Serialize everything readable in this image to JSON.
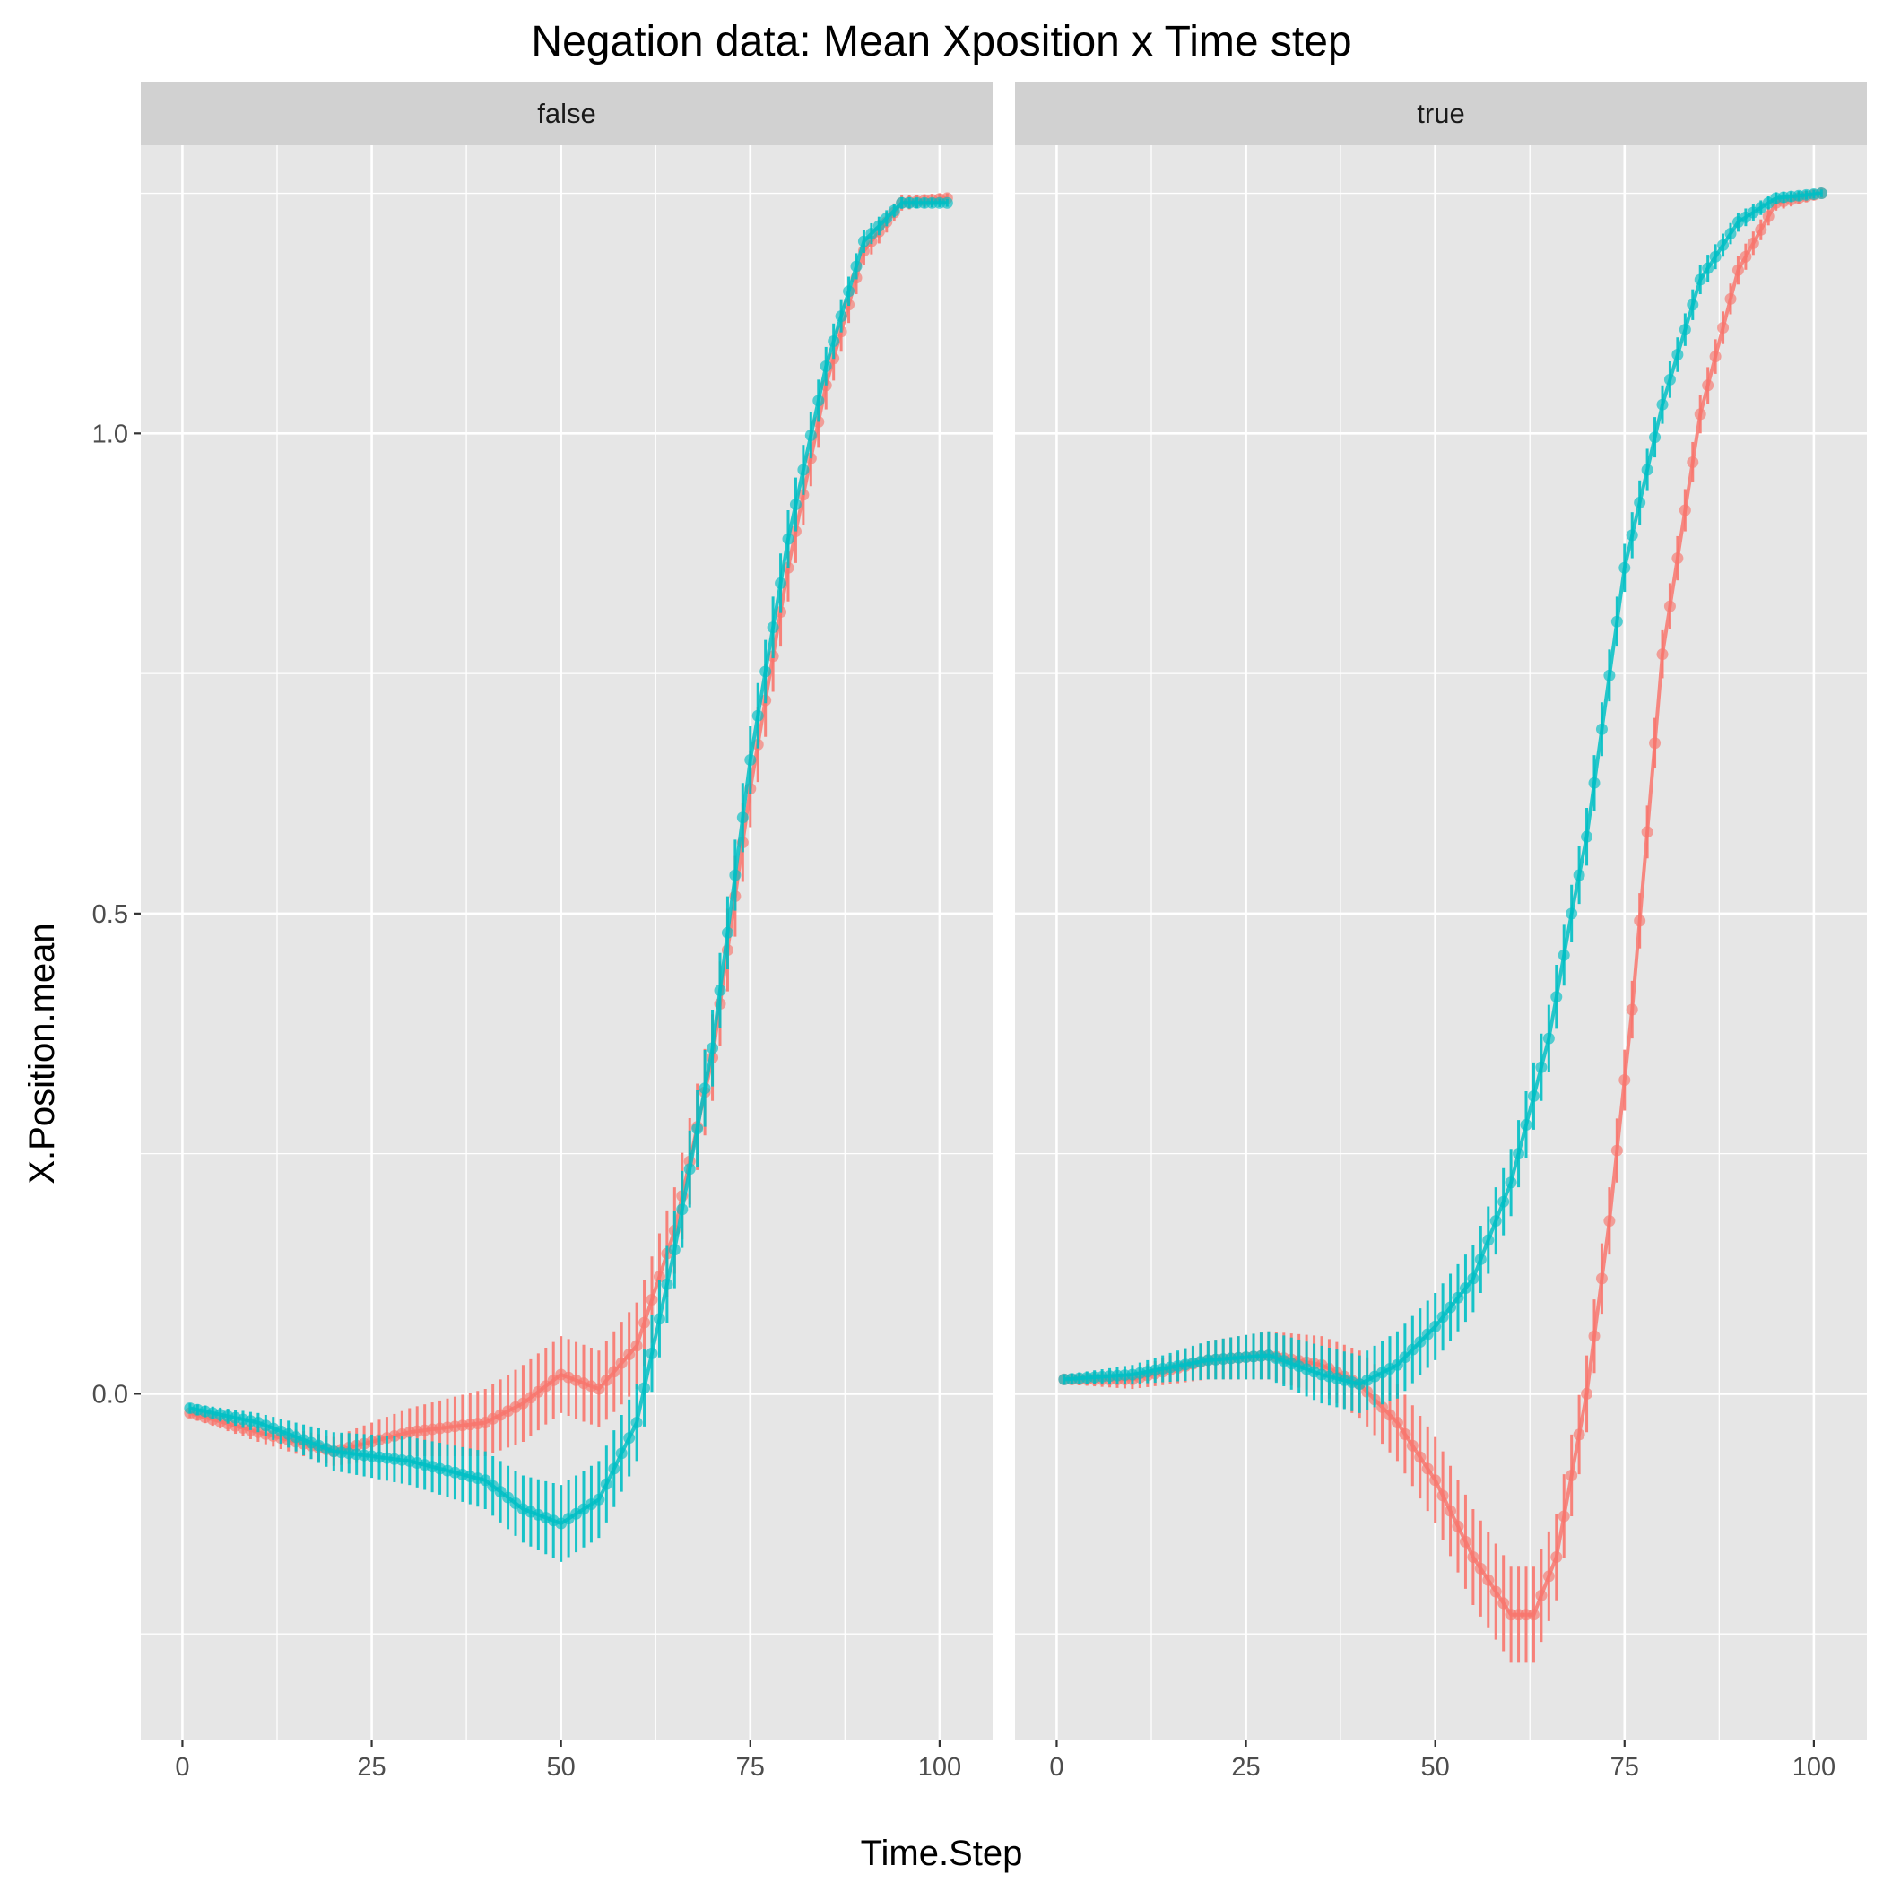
{
  "chart_data": {
    "type": "line",
    "title": "Negation data: Mean Xposition x Time step",
    "xlabel": "Time.Step",
    "ylabel": "X.Position.mean",
    "xlim": [
      -5.5,
      107
    ],
    "ylim": [
      -0.36,
      1.3
    ],
    "x_ticks": [
      0,
      25,
      50,
      75,
      100
    ],
    "x_tick_labels": [
      "0",
      "25",
      "50",
      "75",
      "100"
    ],
    "y_ticks": [
      0.0,
      0.5,
      1.0
    ],
    "y_tick_labels": [
      "0.0",
      "0.5",
      "1.0"
    ],
    "grid": true,
    "facets": [
      "false",
      "true"
    ],
    "colors": {
      "series_a": "#F8766D",
      "series_b": "#00BFC4"
    },
    "panels": [
      {
        "facet": "false",
        "series": [
          {
            "color": "#F8766D",
            "x": [
              1,
              10,
              20,
              30,
              40,
              45,
              50,
              55,
              60,
              65,
              70,
              75,
              80,
              85,
              90,
              95,
              101
            ],
            "y": [
              -0.02,
              -0.04,
              -0.06,
              -0.04,
              -0.03,
              -0.01,
              0.02,
              0.005,
              0.05,
              0.17,
              0.35,
              0.63,
              0.86,
              1.05,
              1.19,
              1.24,
              1.245
            ],
            "err": [
              0.005,
              0.01,
              0.015,
              0.025,
              0.035,
              0.04,
              0.04,
              0.04,
              0.045,
              0.045,
              0.045,
              0.04,
              0.035,
              0.025,
              0.015,
              0.008,
              0.005
            ]
          },
          {
            "color": "#00BFC4",
            "x": [
              1,
              10,
              20,
              30,
              40,
              45,
              50,
              55,
              60,
              65,
              70,
              75,
              80,
              85,
              90,
              95,
              101
            ],
            "y": [
              -0.015,
              -0.03,
              -0.06,
              -0.07,
              -0.09,
              -0.12,
              -0.135,
              -0.11,
              -0.03,
              0.15,
              0.36,
              0.66,
              0.89,
              1.07,
              1.2,
              1.24,
              1.24
            ],
            "err": [
              0.005,
              0.01,
              0.02,
              0.025,
              0.03,
              0.035,
              0.04,
              0.04,
              0.04,
              0.04,
              0.04,
              0.035,
              0.03,
              0.02,
              0.012,
              0.006,
              0.004
            ]
          }
        ]
      },
      {
        "facet": "true",
        "series": [
          {
            "color": "#F8766D",
            "x": [
              1,
              10,
              20,
              28,
              35,
              40,
              45,
              50,
              55,
              60,
              63,
              66,
              70,
              73,
              76,
              80,
              85,
              90,
              95,
              101
            ],
            "y": [
              0.015,
              0.015,
              0.035,
              0.04,
              0.03,
              0.01,
              -0.03,
              -0.09,
              -0.17,
              -0.23,
              -0.23,
              -0.17,
              0.0,
              0.18,
              0.4,
              0.77,
              1.02,
              1.17,
              1.24,
              1.25
            ],
            "err": [
              0.005,
              0.01,
              0.02,
              0.025,
              0.03,
              0.035,
              0.04,
              0.045,
              0.05,
              0.05,
              0.05,
              0.045,
              0.04,
              0.035,
              0.03,
              0.025,
              0.02,
              0.015,
              0.008,
              0.005
            ]
          },
          {
            "color": "#00BFC4",
            "x": [
              1,
              10,
              20,
              28,
              35,
              40,
              45,
              50,
              55,
              60,
              65,
              68,
              70,
              75,
              80,
              85,
              90,
              95,
              101
            ],
            "y": [
              0.015,
              0.02,
              0.035,
              0.04,
              0.02,
              0.01,
              0.03,
              0.07,
              0.12,
              0.22,
              0.37,
              0.5,
              0.58,
              0.86,
              1.03,
              1.16,
              1.22,
              1.245,
              1.25
            ],
            "err": [
              0.005,
              0.01,
              0.02,
              0.025,
              0.03,
              0.03,
              0.035,
              0.035,
              0.035,
              0.035,
              0.035,
              0.03,
              0.03,
              0.025,
              0.02,
              0.015,
              0.01,
              0.006,
              0.004
            ]
          }
        ]
      }
    ]
  }
}
